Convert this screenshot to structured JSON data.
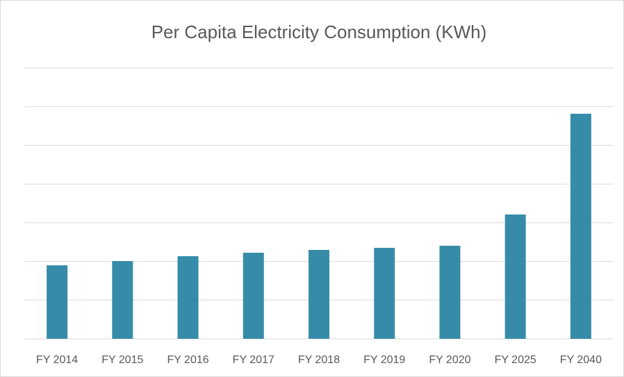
{
  "chart_data": {
    "type": "bar",
    "title": "Per Capita Electricity Consumption (KWh)",
    "categories": [
      "FY 2014",
      "FY 2015",
      "FY 2016",
      "FY 2017",
      "FY 2018",
      "FY 2019",
      "FY 2020",
      "FY 2025",
      "FY 2040"
    ],
    "values": [
      950,
      1005,
      1068,
      1113,
      1149,
      1176,
      1203,
      1607,
      2909
    ],
    "color": "#368ca8",
    "ylim": [
      0,
      3500
    ],
    "yticks": [
      0,
      500,
      1000,
      1500,
      2000,
      2500,
      3000,
      3500
    ],
    "grid": true
  }
}
